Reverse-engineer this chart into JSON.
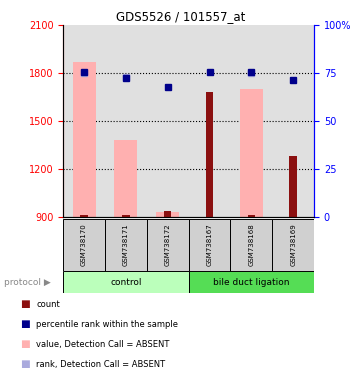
{
  "title": "GDS5526 / 101557_at",
  "samples": [
    "GSM738170",
    "GSM738171",
    "GSM738172",
    "GSM738167",
    "GSM738168",
    "GSM738169"
  ],
  "ylim_left": [
    900,
    2100
  ],
  "ylim_right": [
    0,
    100
  ],
  "yticks_left": [
    900,
    1200,
    1500,
    1800,
    2100
  ],
  "yticks_right": [
    0,
    25,
    50,
    75,
    100
  ],
  "pink_bar_values": [
    1870,
    1380,
    930,
    900,
    1700,
    900
  ],
  "red_bar_values": [
    912,
    912,
    935,
    1680,
    912,
    1280
  ],
  "blue_square_values": [
    75.5,
    72.5,
    67.5,
    75.5,
    75.5,
    71.5
  ],
  "light_blue_square_values": [
    75.0,
    73.0,
    null,
    null,
    75.2,
    null
  ],
  "pink_bar_color": "#FFB0B0",
  "red_bar_color": "#8B1010",
  "blue_square_color": "#00008B",
  "light_blue_color": "#AAAADD",
  "ctrl_color": "#BBFFBB",
  "bdl_color": "#55DD55",
  "baseline": 900,
  "pink_bar_width": 0.55,
  "red_bar_width": 0.18,
  "hgrid_vals": [
    1200,
    1500,
    1800
  ]
}
